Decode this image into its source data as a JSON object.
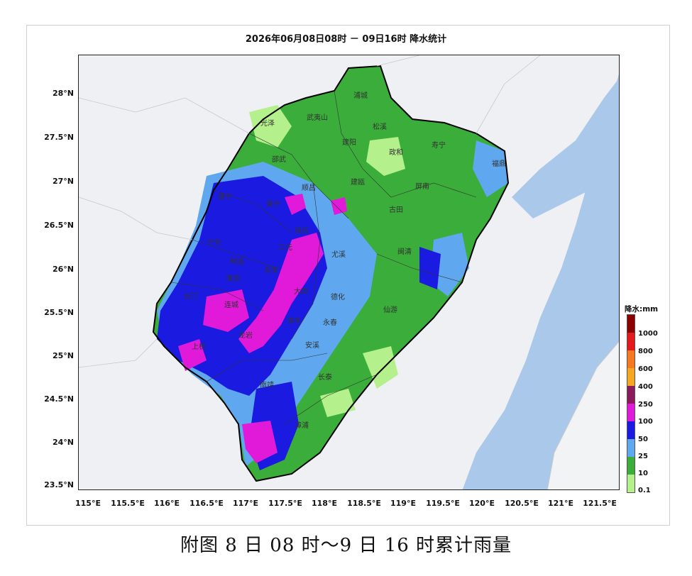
{
  "title": "2026年06月08日08时 － 09日16时 降水统计",
  "caption": "附图 8 日 08 时～9 日 16 时累计雨量",
  "y_axis": [
    "28°N",
    "27.5°N",
    "27°N",
    "26.5°N",
    "26°N",
    "25.5°N",
    "25°N",
    "24.5°N",
    "24°N",
    "23.5°N"
  ],
  "x_axis": [
    "115°E",
    "115.5°E",
    "116°E",
    "116.5°E",
    "117°E",
    "117.5°E",
    "118°E",
    "118.5°E",
    "119°E",
    "119.5°E",
    "120°E",
    "120.5°E",
    "121°E",
    "121.5°E"
  ],
  "legend": {
    "title": "降水:mm",
    "levels": [
      "1000",
      "800",
      "600",
      "400",
      "250",
      "100",
      "50",
      "25",
      "10",
      "0.1"
    ],
    "colors": [
      "#8b0000",
      "#e31a1c",
      "#f47920",
      "#f5a623",
      "#8b1a5a",
      "#e01ad8",
      "#1a1ae0",
      "#5fa8f0",
      "#3aad3a",
      "#b4f08c"
    ]
  },
  "counties": [
    "浦城",
    "武夷山",
    "光泽",
    "松溪",
    "建阳",
    "政和",
    "邵武",
    "寿宁",
    "福鼎",
    "顺昌",
    "建瓯",
    "屏南",
    "古田",
    "建宁",
    "泰宁",
    "将乐",
    "明溪",
    "三元",
    "尤溪",
    "闽清",
    "宁化",
    "清流",
    "永安",
    "大田",
    "德化",
    "永春",
    "仙游",
    "长汀",
    "连城",
    "漳平",
    "安溪",
    "上杭",
    "龙岩",
    "南靖",
    "长泰",
    "漳浦"
  ]
}
